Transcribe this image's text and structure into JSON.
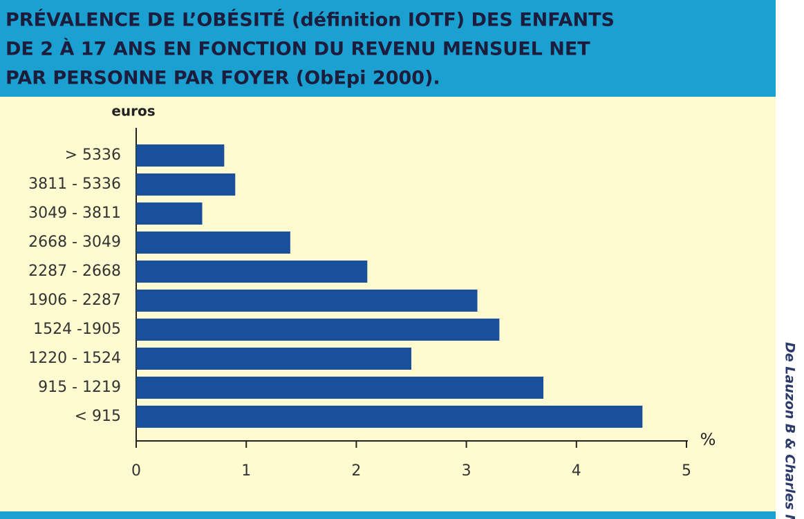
{
  "chart_data": {
    "type": "bar",
    "orientation": "horizontal",
    "title": [
      "PRÉVALENCE DE L’OBÉSITÉ (définition IOTF) DES ENFANTS",
      "DE 2 À 17 ANS EN FONCTION DU REVENU MENSUEL NET",
      "PAR PERSONNE PAR FOYER (ObEpi 2000)."
    ],
    "y_label": "euros",
    "x_label": "%",
    "categories": [
      "> 5336",
      "3811 - 5336",
      "3049 - 3811",
      "2668 - 3049",
      "2287 - 2668",
      "1906 - 2287",
      "1524 -1905",
      "1220 - 1524",
      "915 - 1219",
      "< 915"
    ],
    "values": [
      0.8,
      0.9,
      0.6,
      1.4,
      2.1,
      3.1,
      3.3,
      2.5,
      3.7,
      4.6
    ],
    "color": "#1a4f9c",
    "xlim": [
      0,
      5
    ],
    "xticks": [
      0,
      1,
      2,
      3,
      4,
      5
    ],
    "source": "De Lauzon B & Charles MA"
  }
}
